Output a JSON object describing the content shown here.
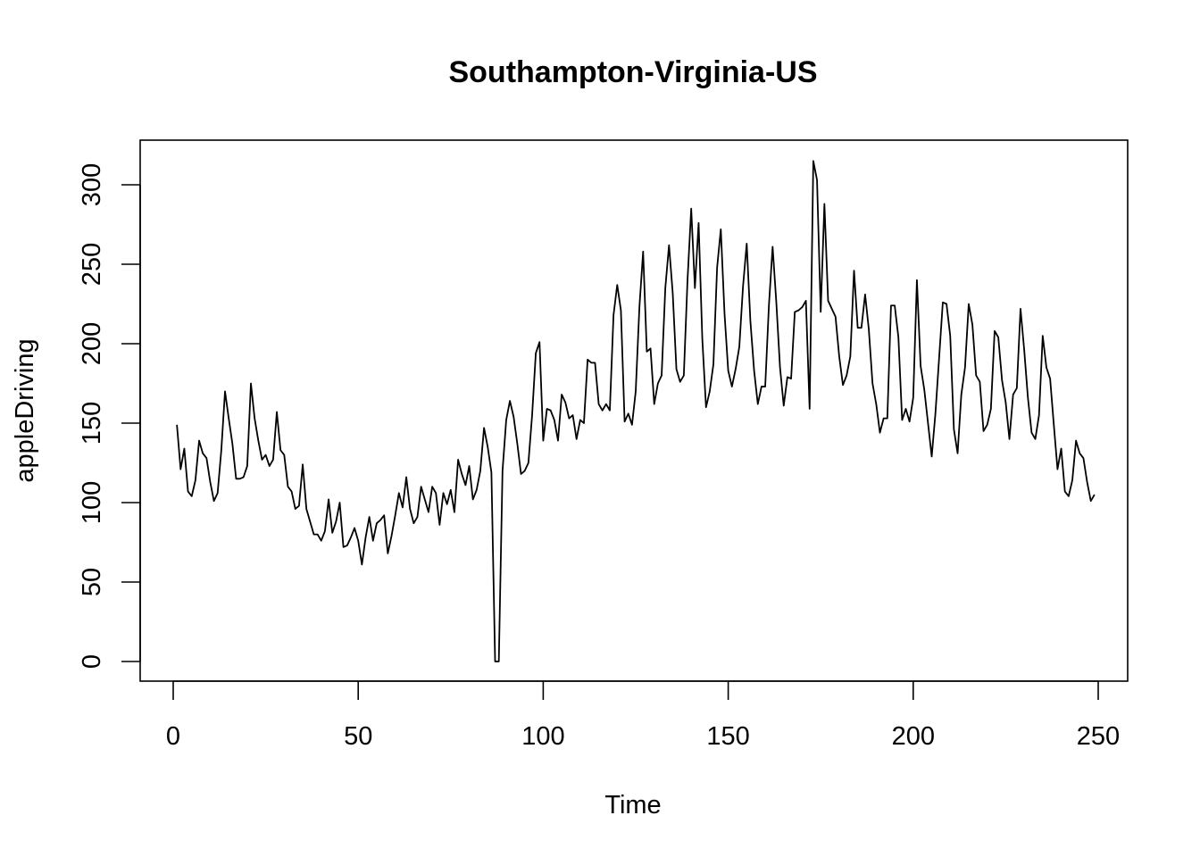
{
  "chart_data": {
    "type": "line",
    "title": "Southampton-Virginia-US",
    "xlabel": "Time",
    "ylabel": "appleDriving",
    "xlim": [
      0,
      250
    ],
    "ylim": [
      0,
      300
    ],
    "x_ticks": [
      0,
      50,
      100,
      150,
      200,
      250
    ],
    "y_ticks": [
      0,
      50,
      100,
      150,
      200,
      250,
      300
    ],
    "grid": false,
    "legend": "none",
    "line_color": "#000000",
    "series": [
      {
        "x_start": 1,
        "values": [
          149,
          121,
          134,
          107,
          104,
          114,
          139,
          131,
          128,
          113,
          101,
          106,
          133,
          170,
          153,
          137,
          115,
          115,
          116,
          123,
          175,
          153,
          139,
          127,
          130,
          123,
          127,
          157,
          133,
          130,
          110,
          107,
          96,
          98,
          124,
          96,
          88,
          80,
          80,
          76,
          82,
          102,
          81,
          88,
          100,
          72,
          73,
          78,
          84,
          76,
          61,
          78,
          91,
          76,
          87,
          89,
          92,
          68,
          79,
          92,
          106,
          97,
          116,
          96,
          87,
          91,
          110,
          102,
          94,
          110,
          106,
          86,
          106,
          99,
          108,
          94,
          127,
          118,
          111,
          123,
          102,
          108,
          120,
          147,
          135,
          119,
          0,
          0,
          120,
          152,
          164,
          154,
          137,
          118,
          120,
          125,
          155,
          194,
          201,
          139,
          159,
          158,
          152,
          139,
          168,
          163,
          153,
          155,
          140,
          152,
          150,
          190,
          188,
          188,
          162,
          158,
          162,
          158,
          218,
          237,
          221,
          151,
          156,
          149,
          170,
          223,
          258,
          195,
          197,
          162,
          175,
          180,
          235,
          262,
          232,
          184,
          176,
          180,
          240,
          285,
          235,
          276,
          203,
          160,
          170,
          187,
          248,
          272,
          219,
          183,
          173,
          184,
          198,
          236,
          263,
          214,
          183,
          162,
          173,
          173,
          224,
          261,
          226,
          185,
          161,
          179,
          178,
          220,
          221,
          223,
          227,
          159,
          315,
          303,
          220,
          288,
          227,
          222,
          217,
          192,
          174,
          180,
          192,
          246,
          210,
          210,
          231,
          209,
          175,
          162,
          144,
          153,
          153,
          224,
          224,
          204,
          152,
          159,
          151,
          166,
          240,
          186,
          171,
          150,
          129,
          156,
          191,
          226,
          225,
          205,
          146,
          131,
          168,
          185,
          225,
          212,
          180,
          176,
          145,
          149,
          159,
          208,
          204,
          177,
          163,
          140,
          168,
          172,
          222,
          196,
          166,
          144,
          140,
          155,
          205,
          185,
          178,
          149,
          121,
          134,
          107,
          104,
          114,
          139,
          131,
          128,
          113,
          101,
          105
        ]
      }
    ]
  }
}
